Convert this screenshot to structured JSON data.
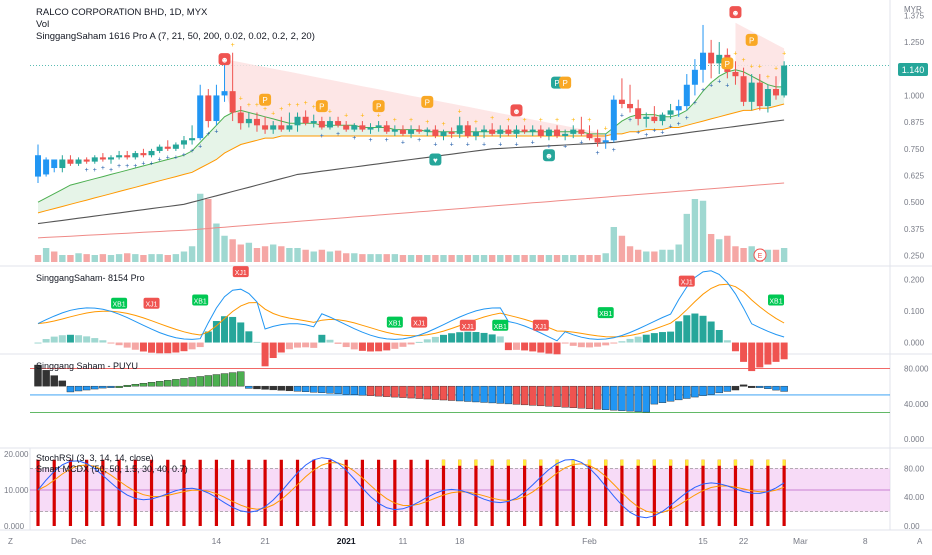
{
  "header": {
    "symbol_line": "RALCO CORPORATION BHD, 1D, MYX",
    "vol_label": "Vol",
    "indicator_line": "SinggangSaham 1616 Pro A  (7, 21, 50, 200, 0.02, 0.02, 0.2, 2, 20)"
  },
  "currency": "MYR",
  "last_price_badge": "1.140",
  "panels": {
    "pane2_title": "SinggangSaham- 8154 Pro",
    "pane3_title": "Singgang Saham - PUYU",
    "pane4_title1": "StochRSI (3, 3, 14, 14, close)",
    "pane4_title2": "Smart MCDX (50, 50, 1.5, 30, 40, 0.7)"
  },
  "axis": {
    "corner_left": "Z",
    "corner_right": "A",
    "xticks": [
      "Dec",
      "14",
      "21",
      "2021",
      "11",
      "18",
      "Feb",
      "15",
      "22",
      "Mar",
      "8"
    ]
  },
  "colors": {
    "up": "#26a69a",
    "down": "#ef5350",
    "blue": "#2196f3",
    "ma_green": "#4caf50",
    "ma_orange": "#ff9800",
    "ma_black": "#555555",
    "ma_red": "#ef5350",
    "pink_fill": "#fde2e2",
    "green_fill": "#e3f3e6",
    "magenta_fill": "#f2c3f2",
    "badge": "#26a69a"
  },
  "chart_data": [
    {
      "type": "candlestick",
      "title": "RALCO CORPORATION BHD, 1D, MYX",
      "ylabel": "MYR",
      "ylim": [
        0.22,
        1.4
      ],
      "yticks": [
        "1.375",
        "1.250",
        "1.000",
        "0.875",
        "0.750",
        "0.625",
        "0.500",
        "0.375",
        "0.250"
      ],
      "last_price": "1.140",
      "candles": [
        [
          0.72,
          0.77,
          0.59,
          0.62
        ],
        [
          0.63,
          0.71,
          0.62,
          0.7
        ],
        [
          0.7,
          0.7,
          0.64,
          0.66
        ],
        [
          0.66,
          0.72,
          0.64,
          0.7
        ],
        [
          0.7,
          0.72,
          0.67,
          0.68
        ],
        [
          0.68,
          0.71,
          0.67,
          0.7
        ],
        [
          0.7,
          0.71,
          0.68,
          0.69
        ],
        [
          0.69,
          0.72,
          0.68,
          0.71
        ],
        [
          0.71,
          0.73,
          0.69,
          0.7
        ],
        [
          0.7,
          0.72,
          0.68,
          0.71
        ],
        [
          0.71,
          0.74,
          0.7,
          0.72
        ],
        [
          0.72,
          0.74,
          0.7,
          0.71
        ],
        [
          0.71,
          0.74,
          0.7,
          0.73
        ],
        [
          0.73,
          0.75,
          0.71,
          0.72
        ],
        [
          0.72,
          0.75,
          0.71,
          0.74
        ],
        [
          0.74,
          0.77,
          0.73,
          0.76
        ],
        [
          0.76,
          0.79,
          0.74,
          0.75
        ],
        [
          0.75,
          0.78,
          0.74,
          0.77
        ],
        [
          0.77,
          0.81,
          0.75,
          0.79
        ],
        [
          0.79,
          0.86,
          0.77,
          0.8
        ],
        [
          0.8,
          1.05,
          0.79,
          1.0
        ],
        [
          1.0,
          1.03,
          0.85,
          0.88
        ],
        [
          0.88,
          1.05,
          0.86,
          1.0
        ],
        [
          1.0,
          1.15,
          0.97,
          1.02
        ],
        [
          1.02,
          1.2,
          0.88,
          0.92
        ],
        [
          0.92,
          0.95,
          0.84,
          0.87
        ],
        [
          0.87,
          0.92,
          0.85,
          0.89
        ],
        [
          0.89,
          0.92,
          0.83,
          0.86
        ],
        [
          0.86,
          0.9,
          0.82,
          0.84
        ],
        [
          0.84,
          0.88,
          0.82,
          0.86
        ],
        [
          0.86,
          0.9,
          0.83,
          0.84
        ],
        [
          0.84,
          0.92,
          0.83,
          0.86
        ],
        [
          0.86,
          0.92,
          0.83,
          0.9
        ],
        [
          0.9,
          0.93,
          0.86,
          0.87
        ],
        [
          0.87,
          0.91,
          0.85,
          0.88
        ],
        [
          0.88,
          0.9,
          0.84,
          0.85
        ],
        [
          0.85,
          0.9,
          0.84,
          0.88
        ],
        [
          0.88,
          0.9,
          0.85,
          0.86
        ],
        [
          0.86,
          0.88,
          0.83,
          0.84
        ],
        [
          0.84,
          0.87,
          0.83,
          0.86
        ],
        [
          0.86,
          0.88,
          0.83,
          0.84
        ],
        [
          0.84,
          0.87,
          0.82,
          0.85
        ],
        [
          0.85,
          0.88,
          0.83,
          0.86
        ],
        [
          0.86,
          0.88,
          0.82,
          0.83
        ],
        [
          0.83,
          0.86,
          0.81,
          0.84
        ],
        [
          0.84,
          0.86,
          0.81,
          0.82
        ],
        [
          0.82,
          0.86,
          0.8,
          0.84
        ],
        [
          0.84,
          0.86,
          0.82,
          0.83
        ],
        [
          0.83,
          0.85,
          0.81,
          0.84
        ],
        [
          0.84,
          0.86,
          0.8,
          0.81
        ],
        [
          0.81,
          0.84,
          0.79,
          0.83
        ],
        [
          0.83,
          0.85,
          0.8,
          0.82
        ],
        [
          0.82,
          0.9,
          0.8,
          0.86
        ],
        [
          0.86,
          0.88,
          0.8,
          0.81
        ],
        [
          0.81,
          0.85,
          0.79,
          0.83
        ],
        [
          0.83,
          0.86,
          0.8,
          0.84
        ],
        [
          0.84,
          0.87,
          0.81,
          0.82
        ],
        [
          0.82,
          0.86,
          0.8,
          0.84
        ],
        [
          0.84,
          0.86,
          0.81,
          0.82
        ],
        [
          0.82,
          0.86,
          0.8,
          0.84
        ],
        [
          0.84,
          0.86,
          0.82,
          0.83
        ],
        [
          0.83,
          0.86,
          0.81,
          0.84
        ],
        [
          0.84,
          0.86,
          0.8,
          0.81
        ],
        [
          0.81,
          0.85,
          0.79,
          0.84
        ],
        [
          0.84,
          0.86,
          0.8,
          0.81
        ],
        [
          0.81,
          0.84,
          0.79,
          0.82
        ],
        [
          0.82,
          0.86,
          0.8,
          0.84
        ],
        [
          0.84,
          0.9,
          0.81,
          0.82
        ],
        [
          0.82,
          0.86,
          0.79,
          0.8
        ],
        [
          0.8,
          0.84,
          0.76,
          0.78
        ],
        [
          0.78,
          0.82,
          0.75,
          0.79
        ],
        [
          0.79,
          1.0,
          0.78,
          0.98
        ],
        [
          0.98,
          1.08,
          0.94,
          0.96
        ],
        [
          0.96,
          1.05,
          0.92,
          0.94
        ],
        [
          0.94,
          0.98,
          0.86,
          0.89
        ],
        [
          0.89,
          0.92,
          0.85,
          0.9
        ],
        [
          0.9,
          0.95,
          0.87,
          0.88
        ],
        [
          0.88,
          0.92,
          0.86,
          0.91
        ],
        [
          0.91,
          0.96,
          0.89,
          0.93
        ],
        [
          0.93,
          0.98,
          0.9,
          0.95
        ],
        [
          0.95,
          1.1,
          0.93,
          1.05
        ],
        [
          1.05,
          1.17,
          1.0,
          1.12
        ],
        [
          1.12,
          1.33,
          1.06,
          1.2
        ],
        [
          1.2,
          1.26,
          1.08,
          1.15
        ],
        [
          1.15,
          1.25,
          1.1,
          1.19
        ],
        [
          1.19,
          1.22,
          1.08,
          1.11
        ],
        [
          1.11,
          1.16,
          1.05,
          1.09
        ],
        [
          1.09,
          1.13,
          0.95,
          0.97
        ],
        [
          0.97,
          1.1,
          0.93,
          1.06
        ],
        [
          1.06,
          1.1,
          0.93,
          0.95
        ],
        [
          0.95,
          1.05,
          0.92,
          1.03
        ],
        [
          1.03,
          1.09,
          0.98,
          1.0
        ],
        [
          1.0,
          1.16,
          0.99,
          1.14
        ]
      ],
      "volumes": [
        8,
        16,
        12,
        8,
        8,
        10,
        9,
        8,
        9,
        8,
        9,
        10,
        9,
        8,
        9,
        9,
        8,
        9,
        12,
        18,
        78,
        72,
        44,
        30,
        26,
        20,
        22,
        16,
        18,
        20,
        18,
        16,
        16,
        14,
        12,
        14,
        12,
        13,
        10,
        10,
        9,
        9,
        9,
        9,
        9,
        8,
        8,
        8,
        8,
        8,
        8,
        8,
        8,
        8,
        8,
        8,
        8,
        8,
        8,
        8,
        8,
        8,
        8,
        8,
        8,
        8,
        8,
        8,
        8,
        8,
        10,
        40,
        30,
        18,
        14,
        12,
        12,
        14,
        14,
        20,
        55,
        72,
        70,
        32,
        26,
        30,
        18,
        16,
        18,
        15,
        14,
        14,
        16
      ],
      "ma7": [
        0.5,
        0.52,
        0.54,
        0.56,
        0.58,
        0.59,
        0.6,
        0.61,
        0.62,
        0.63,
        0.64,
        0.65,
        0.66,
        0.67,
        0.68,
        0.69,
        0.7,
        0.71,
        0.72,
        0.74,
        0.78,
        0.82,
        0.86,
        0.9,
        0.92,
        0.93,
        0.92,
        0.91,
        0.9,
        0.89,
        0.88,
        0.87,
        0.87,
        0.87,
        0.87,
        0.86,
        0.86,
        0.86,
        0.86,
        0.86,
        0.85,
        0.85,
        0.85,
        0.85,
        0.84,
        0.84,
        0.84,
        0.84,
        0.83,
        0.83,
        0.83,
        0.83,
        0.83,
        0.83,
        0.83,
        0.83,
        0.83,
        0.83,
        0.83,
        0.83,
        0.83,
        0.83,
        0.83,
        0.83,
        0.83,
        0.83,
        0.83,
        0.83,
        0.82,
        0.82,
        0.82,
        0.85,
        0.88,
        0.9,
        0.91,
        0.91,
        0.91,
        0.9,
        0.9,
        0.91,
        0.93,
        0.97,
        1.02,
        1.06,
        1.09,
        1.11,
        1.12,
        1.11,
        1.09,
        1.07,
        1.05,
        1.04,
        1.04
      ],
      "ma21": [
        0.45,
        0.46,
        0.47,
        0.48,
        0.49,
        0.5,
        0.51,
        0.52,
        0.53,
        0.54,
        0.55,
        0.56,
        0.57,
        0.58,
        0.59,
        0.6,
        0.61,
        0.62,
        0.63,
        0.64,
        0.66,
        0.68,
        0.7,
        0.73,
        0.75,
        0.77,
        0.78,
        0.79,
        0.8,
        0.8,
        0.81,
        0.81,
        0.81,
        0.81,
        0.81,
        0.81,
        0.81,
        0.81,
        0.81,
        0.81,
        0.81,
        0.81,
        0.81,
        0.81,
        0.81,
        0.81,
        0.81,
        0.81,
        0.81,
        0.81,
        0.81,
        0.81,
        0.81,
        0.81,
        0.81,
        0.81,
        0.81,
        0.81,
        0.81,
        0.81,
        0.81,
        0.81,
        0.81,
        0.81,
        0.81,
        0.81,
        0.81,
        0.81,
        0.81,
        0.81,
        0.81,
        0.82,
        0.82,
        0.83,
        0.83,
        0.84,
        0.84,
        0.84,
        0.85,
        0.85,
        0.86,
        0.87,
        0.88,
        0.89,
        0.9,
        0.91,
        0.92,
        0.93,
        0.93,
        0.94,
        0.94,
        0.95,
        0.96
      ],
      "ma50": [
        0.4,
        0.405,
        0.41,
        0.415,
        0.42,
        0.425,
        0.43,
        0.435,
        0.44,
        0.445,
        0.45,
        0.455,
        0.46,
        0.465,
        0.47,
        0.475,
        0.48,
        0.485,
        0.49,
        0.5,
        0.51,
        0.52,
        0.53,
        0.54,
        0.55,
        0.56,
        0.57,
        0.58,
        0.59,
        0.6,
        0.61,
        0.62,
        0.63,
        0.635,
        0.64,
        0.645,
        0.65,
        0.655,
        0.66,
        0.665,
        0.67,
        0.675,
        0.68,
        0.685,
        0.69,
        0.695,
        0.7,
        0.705,
        0.71,
        0.715,
        0.72,
        0.725,
        0.73,
        0.735,
        0.74,
        0.745,
        0.75,
        0.752,
        0.754,
        0.756,
        0.758,
        0.76,
        0.762,
        0.764,
        0.766,
        0.768,
        0.77,
        0.772,
        0.774,
        0.776,
        0.778,
        0.78,
        0.785,
        0.79,
        0.795,
        0.8,
        0.805,
        0.81,
        0.815,
        0.82,
        0.825,
        0.83,
        0.835,
        0.84,
        0.845,
        0.85,
        0.855,
        0.86,
        0.865,
        0.87,
        0.875,
        0.88,
        0.885
      ],
      "ma200": [
        0.333,
        0.335,
        0.337,
        0.339,
        0.341,
        0.343,
        0.345,
        0.347,
        0.349,
        0.351,
        0.353,
        0.355,
        0.357,
        0.359,
        0.361,
        0.363,
        0.365,
        0.367,
        0.369,
        0.371,
        0.374,
        0.377,
        0.38,
        0.383,
        0.386,
        0.389,
        0.392,
        0.395,
        0.398,
        0.401,
        0.404,
        0.407,
        0.41,
        0.413,
        0.416,
        0.419,
        0.422,
        0.425,
        0.428,
        0.431,
        0.434,
        0.437,
        0.44,
        0.443,
        0.446,
        0.449,
        0.452,
        0.455,
        0.458,
        0.461,
        0.464,
        0.467,
        0.47,
        0.473,
        0.476,
        0.479,
        0.482,
        0.485,
        0.488,
        0.491,
        0.494,
        0.497,
        0.5,
        0.503,
        0.506,
        0.509,
        0.512,
        0.515,
        0.518,
        0.521,
        0.524,
        0.527,
        0.53,
        0.533,
        0.536,
        0.539,
        0.542,
        0.545,
        0.548,
        0.551,
        0.554,
        0.557,
        0.56,
        0.563,
        0.566,
        0.569,
        0.572,
        0.575,
        0.578,
        0.581,
        0.584,
        0.587,
        0.59
      ],
      "badges": [
        {
          "i": 23,
          "price": 1.17,
          "label": "☻",
          "color": "#ef5350"
        },
        {
          "i": 28,
          "price": 0.98,
          "label": "P",
          "color": "#f9a825"
        },
        {
          "i": 35,
          "price": 0.95,
          "label": "P",
          "color": "#f9a825"
        },
        {
          "i": 42,
          "price": 0.95,
          "label": "P",
          "color": "#f9a825"
        },
        {
          "i": 48,
          "price": 0.97,
          "label": "P",
          "color": "#f9a825"
        },
        {
          "i": 59,
          "price": 0.93,
          "label": "☻",
          "color": "#ef5350"
        },
        {
          "i": 64,
          "price": 1.06,
          "label": "P",
          "color": "#26a69a"
        },
        {
          "i": 65,
          "price": 1.06,
          "label": "P",
          "color": "#f9a825"
        },
        {
          "i": 49,
          "price": 0.7,
          "label": "♥",
          "color": "#26a69a"
        },
        {
          "i": 63,
          "price": 0.72,
          "label": "☻",
          "color": "#26a69a"
        },
        {
          "i": 86,
          "price": 1.39,
          "label": "☻",
          "color": "#ef5350"
        },
        {
          "i": 88,
          "price": 1.26,
          "label": "P",
          "color": "#f9a825"
        },
        {
          "i": 85,
          "price": 1.15,
          "label": "P",
          "color": "#f9a825"
        }
      ]
    },
    {
      "type": "oscillator",
      "title": "SinggangSaham- 8154 Pro",
      "ylim": [
        -0.03,
        0.23
      ],
      "yticks": [
        "0.200",
        "0.100",
        "0.000"
      ],
      "labels": [
        {
          "i": 10,
          "v": 0.12,
          "label": "XB1",
          "color": "#00c853"
        },
        {
          "i": 14,
          "v": 0.12,
          "label": "XJ1",
          "color": "#ef5350"
        },
        {
          "i": 20,
          "v": 0.13,
          "label": "XB1",
          "color": "#00c853"
        },
        {
          "i": 25,
          "v": 0.22,
          "label": "XJ1",
          "color": "#ef5350"
        },
        {
          "i": 44,
          "v": 0.06,
          "label": "XB1",
          "color": "#00c853"
        },
        {
          "i": 47,
          "v": 0.06,
          "label": "XJ1",
          "color": "#ef5350"
        },
        {
          "i": 53,
          "v": 0.05,
          "label": "XJ1",
          "color": "#ef5350"
        },
        {
          "i": 57,
          "v": 0.05,
          "label": "XB1",
          "color": "#00c853"
        },
        {
          "i": 62,
          "v": 0.05,
          "label": "XJ1",
          "color": "#ef5350"
        },
        {
          "i": 70,
          "v": 0.09,
          "label": "XB1",
          "color": "#00c853"
        },
        {
          "i": 80,
          "v": 0.19,
          "label": "XJ1",
          "color": "#ef5350"
        },
        {
          "i": 91,
          "v": 0.13,
          "label": "XB1",
          "color": "#00c853"
        }
      ]
    },
    {
      "type": "bar",
      "title": "Singgang Saham - PUYU",
      "ylim": [
        -8,
        92
      ],
      "yticks": [
        "80.000",
        "40.000",
        "0.000"
      ],
      "lines": [
        80,
        50,
        30
      ]
    },
    {
      "type": "area",
      "title": "StochRSI (3, 3, 14, 14, close)",
      "ylim": [
        0,
        100
      ],
      "yticks_right": [
        "80.00",
        "40.00",
        "0.00"
      ],
      "yticks_left": [
        "20.000",
        "10.000",
        "0.000"
      ]
    }
  ]
}
